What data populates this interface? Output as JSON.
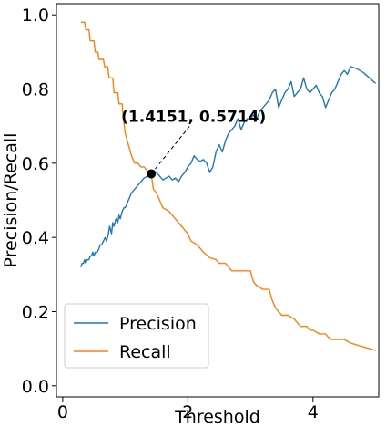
{
  "chart_data": {
    "type": "line",
    "title": "",
    "xlabel": "Threshold",
    "ylabel": "Precision/Recall",
    "xlim": [
      -0.1,
      5.05
    ],
    "ylim": [
      -0.03,
      1.03
    ],
    "xticks": [
      0,
      2,
      4
    ],
    "yticks": [
      0.0,
      0.2,
      0.4,
      0.6,
      0.8,
      1.0
    ],
    "xtick_labels": [
      "0",
      "2",
      "4"
    ],
    "ytick_labels": [
      "0.0",
      "0.2",
      "0.4",
      "0.6",
      "0.8",
      "1.0"
    ],
    "grid": false,
    "legend_position": "lower-left",
    "series": [
      {
        "name": "Precision",
        "color": "#1f77b4",
        "x": [
          0.29,
          0.31,
          0.33,
          0.35,
          0.37,
          0.39,
          0.42,
          0.44,
          0.46,
          0.48,
          0.5,
          0.52,
          0.55,
          0.58,
          0.6,
          0.62,
          0.65,
          0.68,
          0.7,
          0.73,
          0.75,
          0.78,
          0.8,
          0.82,
          0.85,
          0.88,
          0.9,
          0.92,
          0.95,
          0.98,
          1.0,
          1.05,
          1.1,
          1.15,
          1.2,
          1.25,
          1.3,
          1.35,
          1.4151,
          1.45,
          1.5,
          1.55,
          1.6,
          1.65,
          1.7,
          1.75,
          1.8,
          1.85,
          1.9,
          1.95,
          2.0,
          2.05,
          2.1,
          2.15,
          2.2,
          2.25,
          2.3,
          2.35,
          2.4,
          2.45,
          2.5,
          2.55,
          2.6,
          2.65,
          2.7,
          2.75,
          2.8,
          2.85,
          2.9,
          2.95,
          3.0,
          3.05,
          3.1,
          3.15,
          3.2,
          3.25,
          3.3,
          3.35,
          3.4,
          3.45,
          3.5,
          3.55,
          3.6,
          3.65,
          3.7,
          3.75,
          3.8,
          3.85,
          3.9,
          3.95,
          4.0,
          4.05,
          4.1,
          4.15,
          4.2,
          4.25,
          4.3,
          4.35,
          4.4,
          4.45,
          4.5,
          4.55,
          4.6,
          4.7,
          4.8,
          4.9,
          5.0
        ],
        "y": [
          0.32,
          0.33,
          0.33,
          0.34,
          0.33,
          0.34,
          0.34,
          0.35,
          0.35,
          0.36,
          0.35,
          0.36,
          0.36,
          0.37,
          0.38,
          0.38,
          0.39,
          0.4,
          0.39,
          0.41,
          0.43,
          0.41,
          0.44,
          0.43,
          0.45,
          0.44,
          0.46,
          0.45,
          0.47,
          0.48,
          0.48,
          0.5,
          0.52,
          0.53,
          0.54,
          0.55,
          0.56,
          0.565,
          0.5714,
          0.58,
          0.575,
          0.565,
          0.555,
          0.56,
          0.565,
          0.555,
          0.56,
          0.55,
          0.565,
          0.575,
          0.59,
          0.6,
          0.62,
          0.61,
          0.605,
          0.61,
          0.6,
          0.575,
          0.59,
          0.63,
          0.65,
          0.63,
          0.66,
          0.68,
          0.69,
          0.7,
          0.72,
          0.69,
          0.71,
          0.72,
          0.72,
          0.73,
          0.72,
          0.74,
          0.75,
          0.76,
          0.77,
          0.79,
          0.8,
          0.75,
          0.77,
          0.79,
          0.8,
          0.82,
          0.78,
          0.79,
          0.8,
          0.83,
          0.8,
          0.79,
          0.8,
          0.81,
          0.79,
          0.78,
          0.75,
          0.77,
          0.79,
          0.8,
          0.82,
          0.84,
          0.85,
          0.84,
          0.86,
          0.855,
          0.845,
          0.83,
          0.815
        ]
      },
      {
        "name": "Recall",
        "color": "#ff7f0e",
        "x": [
          0.29,
          0.35,
          0.37,
          0.42,
          0.44,
          0.5,
          0.52,
          0.56,
          0.58,
          0.65,
          0.67,
          0.72,
          0.74,
          0.8,
          0.82,
          0.88,
          0.9,
          0.95,
          0.97,
          1.0,
          1.05,
          1.1,
          1.15,
          1.2,
          1.25,
          1.3,
          1.35,
          1.4151,
          1.45,
          1.5,
          1.55,
          1.6,
          1.7,
          1.8,
          1.9,
          2.0,
          2.05,
          2.15,
          2.25,
          2.35,
          2.45,
          2.5,
          2.6,
          2.7,
          2.8,
          2.9,
          3.0,
          3.05,
          3.1,
          3.2,
          3.3,
          3.35,
          3.4,
          3.5,
          3.6,
          3.7,
          3.75,
          3.8,
          3.9,
          3.95,
          4.0,
          4.1,
          4.2,
          4.25,
          4.3,
          4.4,
          4.5,
          4.55,
          4.6,
          4.7,
          4.8,
          4.9,
          5.0
        ],
        "y": [
          0.98,
          0.98,
          0.96,
          0.96,
          0.93,
          0.93,
          0.9,
          0.9,
          0.88,
          0.88,
          0.86,
          0.86,
          0.83,
          0.83,
          0.79,
          0.79,
          0.76,
          0.76,
          0.72,
          0.68,
          0.65,
          0.62,
          0.6,
          0.6,
          0.59,
          0.59,
          0.58,
          0.5714,
          0.53,
          0.52,
          0.5,
          0.48,
          0.47,
          0.45,
          0.43,
          0.41,
          0.39,
          0.38,
          0.36,
          0.345,
          0.34,
          0.33,
          0.33,
          0.31,
          0.31,
          0.31,
          0.31,
          0.28,
          0.27,
          0.26,
          0.26,
          0.23,
          0.21,
          0.19,
          0.19,
          0.18,
          0.17,
          0.16,
          0.16,
          0.15,
          0.15,
          0.14,
          0.14,
          0.13,
          0.125,
          0.125,
          0.125,
          0.12,
          0.115,
          0.11,
          0.105,
          0.1,
          0.095
        ]
      }
    ],
    "annotation": {
      "text": "(1.4151, 0.5714)",
      "x": 1.4151,
      "y": 0.5714
    }
  }
}
